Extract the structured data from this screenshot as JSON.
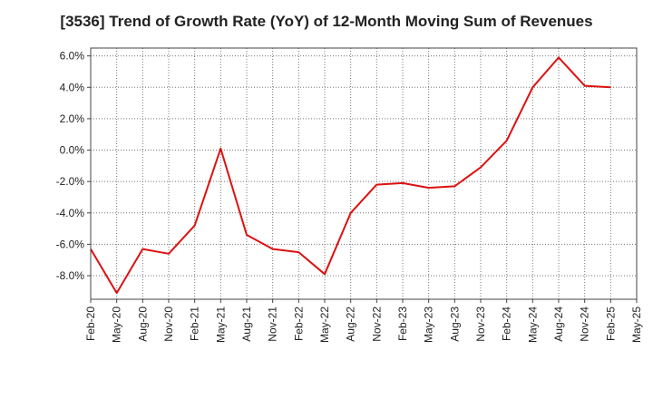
{
  "chart_data": {
    "type": "line",
    "title": "[3536]  Trend of Growth Rate (YoY) of 12-Month Moving Sum of Revenues",
    "xlabel": "",
    "ylabel": "",
    "ylim": [
      -9.5,
      6.5
    ],
    "y_ticks": [
      6.0,
      4.0,
      2.0,
      0.0,
      -2.0,
      -4.0,
      -6.0,
      -8.0
    ],
    "y_tick_labels": [
      "6.0%",
      "4.0%",
      "2.0%",
      "0.0%",
      "-2.0%",
      "-4.0%",
      "-6.0%",
      "-8.0%"
    ],
    "categories": [
      "Feb-20",
      "May-20",
      "Aug-20",
      "Nov-20",
      "Feb-21",
      "May-21",
      "Aug-21",
      "Nov-21",
      "Feb-22",
      "May-22",
      "Aug-22",
      "Nov-22",
      "Feb-23",
      "May-23",
      "Aug-23",
      "Nov-23",
      "Feb-24",
      "May-24",
      "Aug-24",
      "Nov-24",
      "Feb-25",
      "May-25"
    ],
    "grid": true,
    "grid_style": "dotted",
    "series": [
      {
        "color": "#dd1111",
        "values": [
          -6.3,
          -9.1,
          -6.3,
          -6.6,
          -4.8,
          0.1,
          -5.4,
          -6.3,
          -6.5,
          -7.9,
          -4.0,
          -2.2,
          -2.1,
          -2.4,
          -2.3,
          -1.1,
          0.6,
          4.0,
          5.9,
          4.1,
          4.0,
          null
        ]
      }
    ]
  }
}
